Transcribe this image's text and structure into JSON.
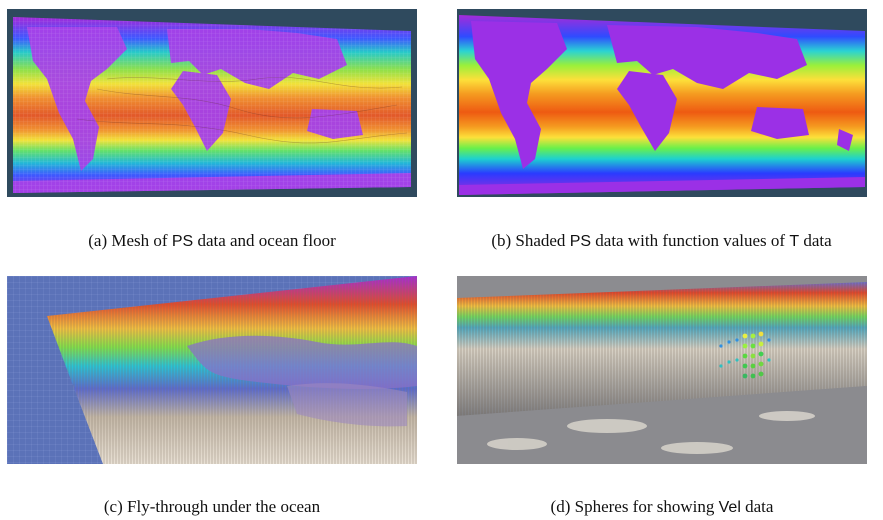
{
  "figure": {
    "panels": [
      {
        "id": "a",
        "label": "(a)",
        "pre": " Mesh of ",
        "var": "PS",
        "post": " data and ocean floor"
      },
      {
        "id": "b",
        "label": "(b)",
        "pre": " Shaded ",
        "var": "PS",
        "post": " data with function values of ",
        "var2": "T",
        "post2": " data"
      },
      {
        "id": "c",
        "label": "(c)",
        "pre": " Fly-through under the ocean",
        "var": "",
        "post": ""
      },
      {
        "id": "d",
        "label": "(d)",
        "pre": " Spheres for showing ",
        "var": "Vel",
        "post": " data"
      }
    ]
  },
  "colors": {
    "panel_background": "#2f4a5e",
    "land": "#9b30e6",
    "ocean_warm": "#e8541a",
    "ocean_cool": "#2a4bff",
    "mesh_line": "#6f6fcf"
  }
}
